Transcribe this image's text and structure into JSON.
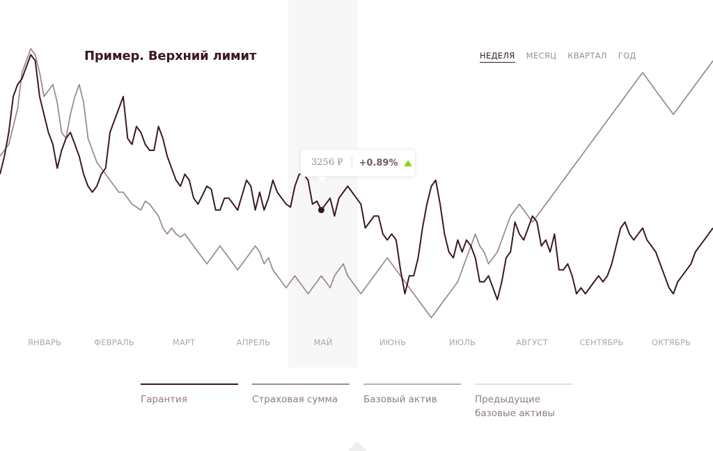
{
  "title": "Пример. Верхний лимит",
  "period_tabs": [
    {
      "label": "НЕДЕЛЯ",
      "active": true
    },
    {
      "label": "МЕСЯЦ",
      "active": false
    },
    {
      "label": "КВАРТАЛ",
      "active": false
    },
    {
      "label": "ГОД",
      "active": false
    }
  ],
  "tooltip": {
    "price": "3256 ₽",
    "change": "+0.89%",
    "trend": "up",
    "arrow_color": "#97d217"
  },
  "highlighted_month": "МАЙ",
  "chart_data": {
    "type": "line",
    "x_labels": [
      "ЯНВАРЬ",
      "ФЕВРАЛЬ",
      "МАРТ",
      "АПРЕЛЬ",
      "МАЙ",
      "ИЮНЬ",
      "ИЮЛЬ",
      "АВГУСТ",
      "СЕНТЯБРЬ",
      "ОКТЯБРЬ"
    ],
    "grid": false,
    "legend_position": "bottom",
    "y_axis_visible": false,
    "series": [
      {
        "name": "Гарантия",
        "color": "#3a1823",
        "values": [
          250,
          280,
          320,
          380,
          400,
          410,
          430,
          450,
          440,
          380,
          350,
          320,
          300,
          260,
          290,
          310,
          320,
          300,
          280,
          250,
          230,
          220,
          230,
          250,
          260,
          320,
          340,
          360,
          380,
          310,
          300,
          330,
          320,
          300,
          290,
          290,
          330,
          310,
          280,
          260,
          240,
          230,
          250,
          240,
          210,
          200,
          215,
          230,
          225,
          190,
          190,
          210,
          210,
          200,
          190,
          215,
          240,
          230,
          190,
          220,
          190,
          210,
          240,
          220,
          210,
          200,
          195,
          230,
          250,
          250,
          240,
          200,
          205,
          190,
          200,
          210,
          180,
          210,
          220,
          230,
          220,
          210,
          200,
          160,
          170,
          180,
          180,
          150,
          140,
          150,
          140,
          90,
          50,
          80,
          80,
          110,
          160,
          200,
          230,
          240,
          200,
          150,
          120,
          110,
          140,
          120,
          140,
          130,
          110,
          70,
          70,
          80,
          60,
          40,
          70,
          110,
          120,
          170,
          150,
          140,
          160,
          180,
          170,
          130,
          140,
          120,
          150,
          90,
          90,
          100,
          80,
          50,
          60,
          50,
          60,
          70,
          80,
          70,
          80,
          100,
          130,
          160,
          170,
          150,
          140,
          150,
          160,
          140,
          130,
          120,
          100,
          80,
          60,
          50,
          70,
          80,
          90,
          100,
          120,
          130,
          140,
          150,
          160
        ]
      },
      {
        "name": "Страховая сумма",
        "color": "#9c8b91",
        "values": [
          280,
          290,
          300,
          330,
          360,
          420,
          440,
          460,
          450,
          420,
          380,
          390,
          400,
          370,
          320,
          310,
          350,
          380,
          400,
          370,
          310,
          290,
          270,
          260,
          250,
          240,
          230,
          220,
          220,
          210,
          200,
          195,
          190,
          205,
          200,
          190,
          180,
          160,
          150,
          160,
          150,
          145,
          150,
          140,
          130,
          120,
          110,
          100,
          110,
          120,
          130,
          120,
          110,
          100,
          90,
          100,
          110,
          120,
          130,
          120,
          100,
          110,
          90,
          80,
          70,
          60,
          70,
          80,
          70,
          60,
          50,
          60,
          70,
          80,
          70,
          60,
          80,
          90,
          100,
          80,
          70,
          60,
          50,
          60,
          70,
          80,
          90,
          100,
          110,
          100,
          90,
          80,
          70,
          60,
          50,
          40,
          30,
          20,
          10,
          20,
          30,
          40,
          50,
          60,
          70,
          90,
          110,
          130,
          150,
          130,
          120,
          100,
          110,
          120,
          140,
          160,
          180,
          190,
          200,
          190,
          180,
          170,
          180,
          190,
          200,
          210,
          220,
          230,
          240,
          250,
          260,
          270,
          280,
          290,
          300,
          310,
          320,
          330,
          340,
          350,
          360,
          370,
          380,
          390,
          400,
          410,
          420,
          410,
          400,
          390,
          380,
          370,
          360,
          350,
          360,
          370,
          380,
          390,
          400,
          410,
          420,
          430,
          440
        ]
      },
      {
        "name": "Базовый актив",
        "color": "#b9aeb2",
        "values": []
      },
      {
        "name": "Предыдущие\nбазовые активы",
        "color": "#e4dfe1",
        "values": []
      }
    ]
  },
  "legend": [
    {
      "label": "Гарантия",
      "color": "#3a1823",
      "thickness": 2
    },
    {
      "label": "Страховая сумма",
      "color": "#9c8b91",
      "thickness": 2
    },
    {
      "label": "Базовый актив",
      "color": "#b9aeb2",
      "thickness": 2
    },
    {
      "label": "Предыдущие\nбазовые активы",
      "color": "#e4dfe1",
      "thickness": 2
    }
  ]
}
